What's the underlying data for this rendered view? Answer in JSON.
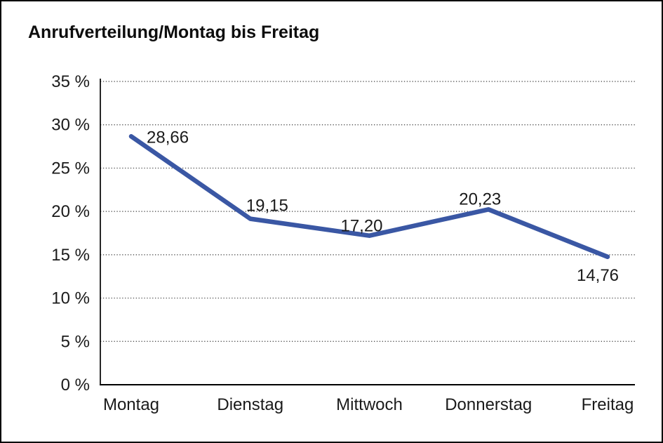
{
  "window": {
    "background_color": "#ffffff",
    "border_color": "#000000"
  },
  "chart_data": {
    "type": "line",
    "title": "Anrufverteilung/Montag bis Freitag",
    "categories": [
      "Montag",
      "Dienstag",
      "Mittwoch",
      "Donnerstag",
      "Freitag"
    ],
    "series": [
      {
        "values": [
          28.66,
          19.15,
          17.2,
          20.23,
          14.76
        ],
        "point_labels": [
          "28,66",
          "19,15",
          "17,20",
          "20,23",
          "14,76"
        ],
        "line_color": "#3A57A4"
      }
    ],
    "ylim": [
      0,
      35
    ],
    "ytick_values": [
      0,
      5,
      10,
      15,
      20,
      25,
      30,
      35
    ],
    "ytick_labels": [
      "0 %",
      "5 %",
      "10 %",
      "15 %",
      "20 %",
      "25 %",
      "30 %",
      "35 %"
    ],
    "xlabel": "",
    "ylabel": "",
    "grid": "horizontal-dotted",
    "legend": "none",
    "axis_color": "#000000",
    "gridline_color": "#3f3f3f",
    "label_color": "#1a1a1a"
  }
}
